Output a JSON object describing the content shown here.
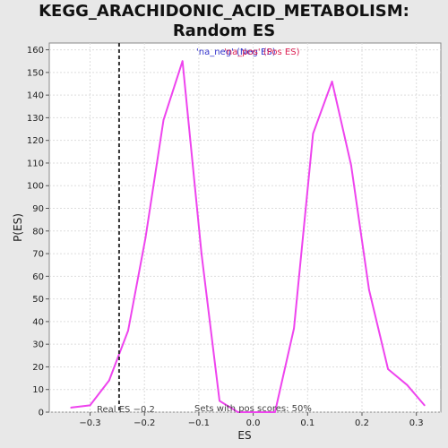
{
  "chart_data": {
    "type": "line",
    "title": "KEGG_ARACHIDONIC_ACID_METABOLISM: Random ES distribution",
    "title_lines": [
      "KEGG_ARACHIDONIC_ACID_METABOLISM: Random ES",
      "distribution"
    ],
    "xlabel": "ES",
    "ylabel": "P(ES)",
    "xlim": [
      -0.375,
      0.345
    ],
    "ylim": [
      0,
      163
    ],
    "xticks": [
      -0.3,
      -0.2,
      -0.1,
      0.0,
      0.1,
      0.2,
      0.3
    ],
    "xtick_labels": [
      "−0.3",
      "−0.2",
      "−0.1",
      "0.0",
      "0.1",
      "0.2",
      "0.3"
    ],
    "yticks": [
      0,
      10,
      20,
      30,
      40,
      50,
      60,
      70,
      80,
      90,
      100,
      110,
      120,
      130,
      140,
      150,
      160
    ],
    "grid": true,
    "legend": {
      "placement": "top-center",
      "neg_label": "'na_neg' (Neg ES)",
      "pos_label": "'na_pos' (Pos ES)",
      "neg_color": "#3333cc",
      "pos_color": "#dd2255"
    },
    "series": [
      {
        "color": "#ee44ee",
        "x": [
          -0.335,
          -0.3,
          -0.265,
          -0.23,
          -0.198,
          -0.165,
          -0.13,
          -0.095,
          -0.062,
          -0.028,
          0.005,
          0.04,
          0.075,
          0.11,
          0.145,
          0.18,
          0.213,
          0.248,
          0.283,
          0.315
        ],
        "y": [
          2,
          3,
          14,
          36,
          77,
          129,
          155,
          70,
          5,
          0,
          0,
          0,
          37,
          123,
          146,
          109,
          54,
          19,
          12,
          3
        ]
      }
    ],
    "reference_line": {
      "x": -0.2466,
      "color": "#333333",
      "style": "dashed"
    },
    "annotations": {
      "real_es": "Real ES −0.2",
      "pos_scores": "Sets with pos scores: 50%"
    }
  }
}
